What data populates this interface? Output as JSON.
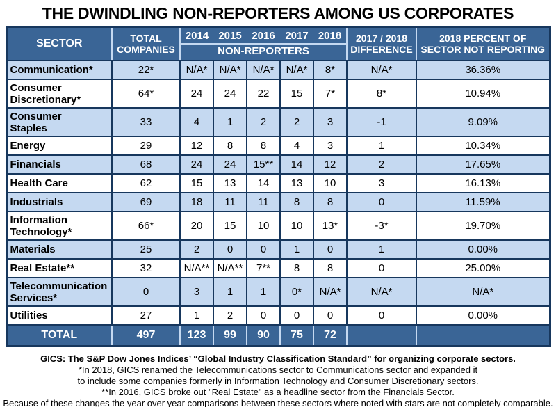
{
  "title": "THE DWINDLING NON-REPORTERS AMONG US CORPORATES",
  "colors": {
    "header_blue": "#3A6596",
    "row_light_blue": "#C5D9F1",
    "border_navy": "#17375D",
    "separator_light": "#C5D9F1",
    "header_text": "#FFFFFF",
    "body_text": "#000000"
  },
  "table": {
    "header": {
      "sector": "SECTOR",
      "total_companies_lines": [
        "TOTAL",
        "COMPANIES"
      ],
      "years": [
        "2014",
        "2015",
        "2016",
        "2017",
        "2018"
      ],
      "non_reporters_label": "NON-REPORTERS",
      "difference_lines": [
        "2017 / 2018",
        "DIFFERENCE"
      ],
      "percent_lines": [
        "2018 PERCENT OF",
        "SECTOR NOT REPORTING"
      ]
    },
    "value_keys": [
      "total-companies",
      "2014",
      "2015",
      "2016",
      "2017",
      "2018",
      "difference",
      "percent"
    ],
    "rows": [
      {
        "sector_lines": [
          "Communication*"
        ],
        "values": [
          "22*",
          "N/A*",
          "N/A*",
          "N/A*",
          "N/A*",
          "8*",
          "N/A*",
          "36.36%"
        ]
      },
      {
        "sector_lines": [
          "Consumer",
          "Discretionary*"
        ],
        "values": [
          "64*",
          "24",
          "24",
          "22",
          "15",
          "7*",
          "8*",
          "10.94%"
        ]
      },
      {
        "sector_lines": [
          "Consumer",
          "Staples"
        ],
        "values": [
          "33",
          "4",
          "1",
          "2",
          "2",
          "3",
          "-1",
          "9.09%"
        ]
      },
      {
        "sector_lines": [
          "Energy"
        ],
        "values": [
          "29",
          "12",
          "8",
          "8",
          "4",
          "3",
          "1",
          "10.34%"
        ]
      },
      {
        "sector_lines": [
          "Financials"
        ],
        "values": [
          "68",
          "24",
          "24",
          "15**",
          "14",
          "12",
          "2",
          "17.65%"
        ]
      },
      {
        "sector_lines": [
          "Health Care"
        ],
        "values": [
          "62",
          "15",
          "13",
          "14",
          "13",
          "10",
          "3",
          "16.13%"
        ]
      },
      {
        "sector_lines": [
          "Industrials"
        ],
        "values": [
          "69",
          "18",
          "11",
          "11",
          "8",
          "8",
          "0",
          "11.59%"
        ]
      },
      {
        "sector_lines": [
          "Information",
          "Technology*"
        ],
        "values": [
          "66*",
          "20",
          "15",
          "10",
          "10",
          "13*",
          "-3*",
          "19.70%"
        ]
      },
      {
        "sector_lines": [
          "Materials"
        ],
        "values": [
          "25",
          "2",
          "0",
          "0",
          "1",
          "0",
          "1",
          "0.00%"
        ]
      },
      {
        "sector_lines": [
          "Real Estate**"
        ],
        "values": [
          "32",
          "N/A**",
          "N/A**",
          "7**",
          "8",
          "8",
          "0",
          "25.00%"
        ]
      },
      {
        "sector_lines": [
          "Telecommunication",
          "Services*"
        ],
        "values": [
          "0",
          "3",
          "1",
          "1",
          "0*",
          "N/A*",
          "N/A*",
          "N/A*"
        ]
      },
      {
        "sector_lines": [
          "Utilities"
        ],
        "values": [
          "27",
          "1",
          "2",
          "0",
          "0",
          "0",
          "0",
          "0.00%"
        ]
      }
    ],
    "total_row": {
      "label": "TOTAL",
      "values": [
        "497",
        "123",
        "99",
        "90",
        "75",
        "72",
        "",
        ""
      ]
    }
  },
  "footnotes": [
    "GICS: The S&P Dow Jones Indices’ “Global Industry Classification Standard” for organizing corporate sectors.",
    "*In 2018, GICS renamed the Telecommunications sector to Communications sector and expanded it",
    "to include some companies formerly in Information Technology and Consumer Discretionary sectors.",
    "**In 2016, GICS broke out \"Real Estate\" as a headline sector from the Financials Sector.",
    "Because of these changes the year over year comparisons between these sectors where noted with stars are not completely comparable."
  ],
  "chart_data": {
    "type": "table",
    "title": "THE DWINDLING NON-REPORTERS AMONG US CORPORATES",
    "columns": [
      "SECTOR",
      "TOTAL COMPANIES",
      "NON-REPORTERS 2014",
      "NON-REPORTERS 2015",
      "NON-REPORTERS 2016",
      "NON-REPORTERS 2017",
      "NON-REPORTERS 2018",
      "2017 / 2018 DIFFERENCE",
      "2018 PERCENT OF SECTOR NOT REPORTING"
    ],
    "rows": [
      [
        "Communication*",
        "22*",
        "N/A*",
        "N/A*",
        "N/A*",
        "N/A*",
        "8*",
        "N/A*",
        "36.36%"
      ],
      [
        "Consumer Discretionary*",
        "64*",
        "24",
        "24",
        "22",
        "15",
        "7*",
        "8*",
        "10.94%"
      ],
      [
        "Consumer Staples",
        "33",
        "4",
        "1",
        "2",
        "2",
        "3",
        "-1",
        "9.09%"
      ],
      [
        "Energy",
        "29",
        "12",
        "8",
        "8",
        "4",
        "3",
        "1",
        "10.34%"
      ],
      [
        "Financials",
        "68",
        "24",
        "24",
        "15**",
        "14",
        "12",
        "2",
        "17.65%"
      ],
      [
        "Health Care",
        "62",
        "15",
        "13",
        "14",
        "13",
        "10",
        "3",
        "16.13%"
      ],
      [
        "Industrials",
        "69",
        "18",
        "11",
        "11",
        "8",
        "8",
        "0",
        "11.59%"
      ],
      [
        "Information Technology*",
        "66*",
        "20",
        "15",
        "10",
        "10",
        "13*",
        "-3*",
        "19.70%"
      ],
      [
        "Materials",
        "25",
        "2",
        "0",
        "0",
        "1",
        "0",
        "1",
        "0.00%"
      ],
      [
        "Real Estate**",
        "32",
        "N/A**",
        "N/A**",
        "7**",
        "8",
        "8",
        "0",
        "25.00%"
      ],
      [
        "Telecommunication Services*",
        "0",
        "3",
        "1",
        "1",
        "0*",
        "N/A*",
        "N/A*",
        "N/A*"
      ],
      [
        "Utilities",
        "27",
        "1",
        "2",
        "0",
        "0",
        "0",
        "0",
        "0.00%"
      ],
      [
        "TOTAL",
        "497",
        "123",
        "99",
        "90",
        "75",
        "72",
        "",
        ""
      ]
    ]
  }
}
